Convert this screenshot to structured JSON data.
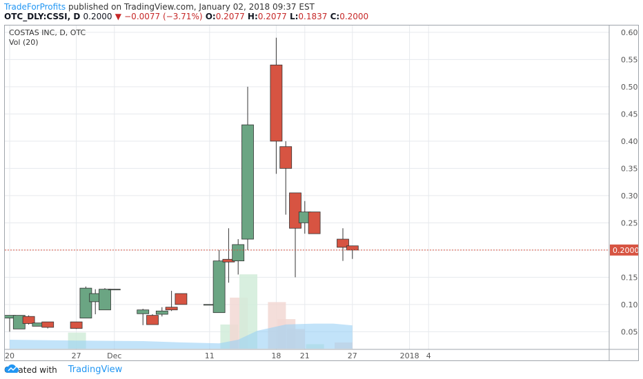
{
  "header": {
    "author": "TradeForProfits",
    "published_text": "published on TradingView.com, January 02, 2018 09:37 EST",
    "symbol": "OTC_DLY:CSSI, D",
    "last": "0.2000",
    "change": "−0.0077 (−3.71%)",
    "o_label": "O:",
    "o_value": "0.2077",
    "h_label": "H:",
    "h_value": "0.2077",
    "l_label": "L:",
    "l_value": "0.1837",
    "c_label": "C:",
    "c_value": "0.2000"
  },
  "footer": {
    "created_with": "Created with",
    "brand": "TradingView"
  },
  "colors": {
    "up": "#6ba583",
    "down": "#d75442",
    "grid": "#e6e9ed",
    "price_line": "#d75442",
    "volume_up": "#d1ecd9",
    "volume_down": "#f2d8d3",
    "volume_ma": "#99d1f5"
  },
  "chart_data": {
    "type": "candlestick",
    "title": "COSTAS INC, D, OTC",
    "volume_label": "Vol (20)",
    "ylim": [
      0.0175,
      0.6125
    ],
    "yticks": [
      "0.6000",
      "0.5500",
      "0.5000",
      "0.4500",
      "0.4000",
      "0.3500",
      "0.3000",
      "0.2500",
      "0.2000",
      "0.1500",
      "0.1000",
      "0.0500"
    ],
    "current_price_label": "0.2000",
    "current_price": 0.2,
    "x_tick_labels": [
      {
        "label": "20",
        "day": 0
      },
      {
        "label": "27",
        "day": 7
      },
      {
        "label": "Dec",
        "day": 11
      },
      {
        "label": "11",
        "day": 21
      },
      {
        "label": "18",
        "day": 28
      },
      {
        "label": "21",
        "day": 31
      },
      {
        "label": "27",
        "day": 36
      },
      {
        "label": "2018",
        "day": 42
      },
      {
        "label": "4",
        "day": 44
      }
    ],
    "candles": [
      {
        "day": 0,
        "o": 0.075,
        "h": 0.08,
        "l": 0.05,
        "c": 0.08
      },
      {
        "day": 1,
        "o": 0.055,
        "h": 0.08,
        "l": 0.055,
        "c": 0.08
      },
      {
        "day": 2,
        "o": 0.078,
        "h": 0.08,
        "l": 0.063,
        "c": 0.065
      },
      {
        "day": 3,
        "o": 0.06,
        "h": 0.066,
        "l": 0.06,
        "c": 0.066
      },
      {
        "day": 4,
        "o": 0.068,
        "h": 0.068,
        "l": 0.056,
        "c": 0.058
      },
      {
        "day": 7,
        "o": 0.068,
        "h": 0.068,
        "l": 0.055,
        "c": 0.056
      },
      {
        "day": 8,
        "o": 0.075,
        "h": 0.133,
        "l": 0.075,
        "c": 0.13
      },
      {
        "day": 9,
        "o": 0.105,
        "h": 0.128,
        "l": 0.082,
        "c": 0.12
      },
      {
        "day": 10,
        "o": 0.09,
        "h": 0.13,
        "l": 0.09,
        "c": 0.128
      },
      {
        "day": 11,
        "o": 0.128,
        "h": 0.128,
        "l": 0.128,
        "c": 0.128
      },
      {
        "day": 14,
        "o": 0.083,
        "h": 0.092,
        "l": 0.062,
        "c": 0.09
      },
      {
        "day": 15,
        "o": 0.08,
        "h": 0.082,
        "l": 0.063,
        "c": 0.063
      },
      {
        "day": 16,
        "o": 0.082,
        "h": 0.095,
        "l": 0.078,
        "c": 0.088
      },
      {
        "day": 17,
        "o": 0.095,
        "h": 0.125,
        "l": 0.088,
        "c": 0.09
      },
      {
        "day": 18,
        "o": 0.12,
        "h": 0.12,
        "l": 0.1,
        "c": 0.1
      },
      {
        "day": 21,
        "o": 0.1,
        "h": 0.1,
        "l": 0.1,
        "c": 0.1
      },
      {
        "day": 22,
        "o": 0.085,
        "h": 0.2,
        "l": 0.085,
        "c": 0.18
      },
      {
        "day": 23,
        "o": 0.183,
        "h": 0.24,
        "l": 0.14,
        "c": 0.178
      },
      {
        "day": 24,
        "o": 0.18,
        "h": 0.22,
        "l": 0.155,
        "c": 0.21
      },
      {
        "day": 25,
        "o": 0.22,
        "h": 0.5,
        "l": 0.2,
        "c": 0.43
      },
      {
        "day": 28,
        "o": 0.54,
        "h": 0.59,
        "l": 0.34,
        "c": 0.4
      },
      {
        "day": 29,
        "o": 0.39,
        "h": 0.4,
        "l": 0.265,
        "c": 0.35
      },
      {
        "day": 30,
        "o": 0.305,
        "h": 0.305,
        "l": 0.15,
        "c": 0.24
      },
      {
        "day": 31,
        "o": 0.25,
        "h": 0.29,
        "l": 0.23,
        "c": 0.27
      },
      {
        "day": 32,
        "o": 0.27,
        "h": 0.27,
        "l": 0.23,
        "c": 0.23
      },
      {
        "day": 35,
        "o": 0.22,
        "h": 0.24,
        "l": 0.18,
        "c": 0.205
      },
      {
        "day": 36,
        "o": 0.2077,
        "h": 0.2077,
        "l": 0.1837,
        "c": 0.2
      }
    ],
    "volume_bars": [
      {
        "day": 7,
        "up": true,
        "value": 0.18
      },
      {
        "day": 23,
        "up": true,
        "value": 0.27
      },
      {
        "day": 24,
        "up": false,
        "value": 0.57
      },
      {
        "day": 25,
        "up": true,
        "value": 0.83
      },
      {
        "day": 28,
        "up": false,
        "value": 0.52
      },
      {
        "day": 29,
        "up": false,
        "value": 0.33
      },
      {
        "day": 30,
        "up": false,
        "value": 0.22
      },
      {
        "day": 32,
        "up": true,
        "value": 0.05
      },
      {
        "day": 35,
        "up": false,
        "value": 0.07
      }
    ]
  }
}
